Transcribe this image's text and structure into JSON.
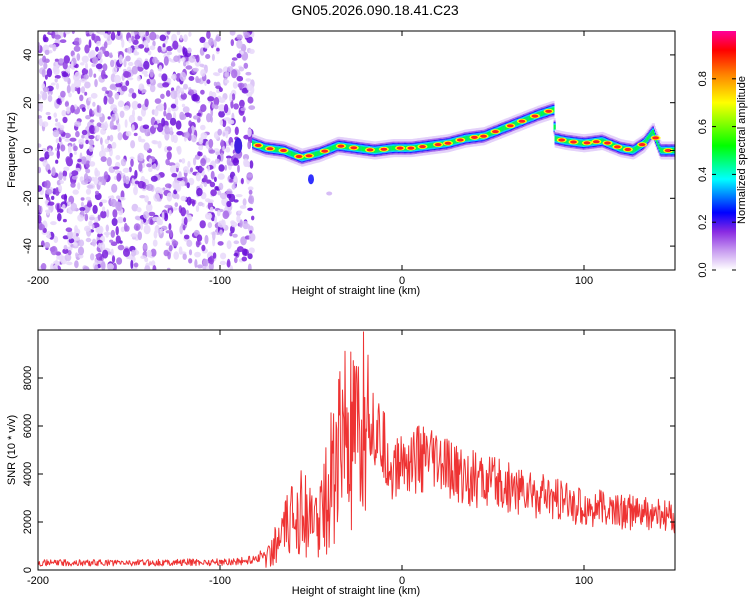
{
  "title": "GN05.2026.090.18.41.C23",
  "colors": {
    "snr_line": "#ee3333",
    "colormap": [
      "#ffffff",
      "#a020f0",
      "#0000ff",
      "#00ffff",
      "#00ff00",
      "#ffff00",
      "#ff7f00",
      "#ff0000",
      "#ff00a0"
    ]
  },
  "chart_data": [
    {
      "type": "heatmap",
      "xlabel": "Height of straight line (km)",
      "ylabel": "Frequency (Hz)",
      "xlim": [
        -200,
        150
      ],
      "ylim": [
        -50,
        50
      ],
      "x_ticks": [
        -200,
        -100,
        0,
        100
      ],
      "y_ticks": [
        -40,
        -20,
        0,
        20,
        40
      ],
      "colorbar": {
        "label": "Normalized spectral amplitude",
        "range": [
          0,
          1
        ],
        "ticks": [
          "0.0",
          "0.2",
          "0.4",
          "0.6",
          "0.8"
        ]
      },
      "noise_region_x": [
        -200,
        -82
      ],
      "ridge": {
        "x": [
          -82,
          -75,
          -65,
          -55,
          -45,
          -35,
          -25,
          -15,
          -5,
          5,
          15,
          25,
          35,
          45,
          55,
          65,
          75,
          83,
          84,
          90,
          100,
          110,
          120,
          127,
          133,
          138,
          142,
          150
        ],
        "y": [
          3,
          1,
          0,
          -3,
          -1,
          2,
          1,
          0,
          1,
          1,
          2,
          3,
          5,
          6,
          9,
          12,
          15,
          17,
          5,
          4,
          3,
          4,
          1,
          0,
          3,
          8,
          0,
          0
        ]
      }
    },
    {
      "type": "line",
      "xlabel": "Height of straight line (km)",
      "ylabel": "SNR (10 * v/v)",
      "xlim": [
        -200,
        150
      ],
      "ylim": [
        0,
        10000
      ],
      "x_ticks": [
        -200,
        -100,
        0,
        100
      ],
      "y_ticks": [
        0,
        2000,
        4000,
        6000,
        8000
      ],
      "envelope": {
        "x": [
          -200,
          -150,
          -100,
          -85,
          -75,
          -68,
          -60,
          -55,
          -50,
          -45,
          -40,
          -35,
          -30,
          -25,
          -20,
          -15,
          -10,
          -5,
          0,
          10,
          20,
          30,
          40,
          50,
          60,
          70,
          80,
          90,
          100,
          110,
          120,
          130,
          140,
          150
        ],
        "y": [
          300,
          300,
          330,
          380,
          650,
          1700,
          3000,
          4200,
          2600,
          3200,
          4800,
          7200,
          7600,
          6800,
          8500,
          6600,
          5800,
          4600,
          5200,
          5300,
          5000,
          4600,
          4300,
          4100,
          3900,
          3700,
          3400,
          3200,
          3000,
          2900,
          2800,
          2700,
          2600,
          2500
        ]
      }
    }
  ]
}
